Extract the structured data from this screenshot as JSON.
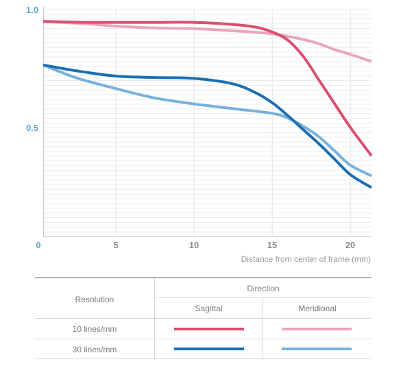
{
  "chart_data": {
    "type": "line",
    "title": "",
    "xlabel": "Distance from center of frame (mm)",
    "ylabel": "",
    "xlim": [
      0.35,
      21.35
    ],
    "ylim": [
      0.04,
      1.0
    ],
    "xticks": [
      0,
      5,
      10,
      15,
      20
    ],
    "xtick_labels": [
      "0",
      "5",
      "10",
      "15",
      "20"
    ],
    "yticks": [
      1.0,
      0.5
    ],
    "ytick_labels": [
      "1.0",
      "0.5"
    ],
    "grid": true,
    "series": [
      {
        "name": "10 lines/mm Sagittal",
        "color": "#d9506f",
        "x": [
          0.35,
          3,
          5,
          7.5,
          10,
          12.5,
          14,
          15,
          16,
          17,
          18,
          19,
          20,
          21.35
        ],
        "y": [
          0.95,
          0.946,
          0.946,
          0.946,
          0.946,
          0.937,
          0.925,
          0.905,
          0.87,
          0.8,
          0.7,
          0.6,
          0.5,
          0.38
        ]
      },
      {
        "name": "10 lines/mm Meridional",
        "color": "#eaa6b8",
        "x": [
          0.35,
          3,
          5,
          7.5,
          10,
          12.5,
          15,
          17.5,
          19,
          20,
          21.35
        ],
        "y": [
          0.95,
          0.94,
          0.93,
          0.922,
          0.919,
          0.91,
          0.897,
          0.865,
          0.83,
          0.81,
          0.78
        ]
      },
      {
        "name": "30 lines/mm Sagittal",
        "color": "#1a6fb4",
        "x": [
          0.35,
          2.5,
          5,
          7.5,
          10,
          12.5,
          14,
          15,
          16,
          17,
          18,
          19,
          20,
          21.35
        ],
        "y": [
          0.765,
          0.74,
          0.718,
          0.712,
          0.708,
          0.685,
          0.645,
          0.605,
          0.55,
          0.49,
          0.43,
          0.365,
          0.3,
          0.245
        ]
      },
      {
        "name": "30 lines/mm Meridional",
        "color": "#78b1dc",
        "x": [
          0.35,
          2.5,
          5,
          7.5,
          10,
          12.5,
          15,
          16,
          17,
          18,
          19,
          20,
          21.35
        ],
        "y": [
          0.765,
          0.71,
          0.665,
          0.625,
          0.6,
          0.58,
          0.56,
          0.54,
          0.505,
          0.46,
          0.4,
          0.34,
          0.295
        ]
      }
    ]
  },
  "table": {
    "resolution_header": "Resolution",
    "direction_header": "Direction",
    "sagittal_header": "Sagittal",
    "meridional_header": "Meridional",
    "rows": [
      {
        "label": "10 lines/mm",
        "sagittal_color": "#d9506f",
        "meridional_color": "#eaa6b8"
      },
      {
        "label": "30 lines/mm",
        "sagittal_color": "#1a6fb4",
        "meridional_color": "#78b1dc"
      }
    ]
  }
}
